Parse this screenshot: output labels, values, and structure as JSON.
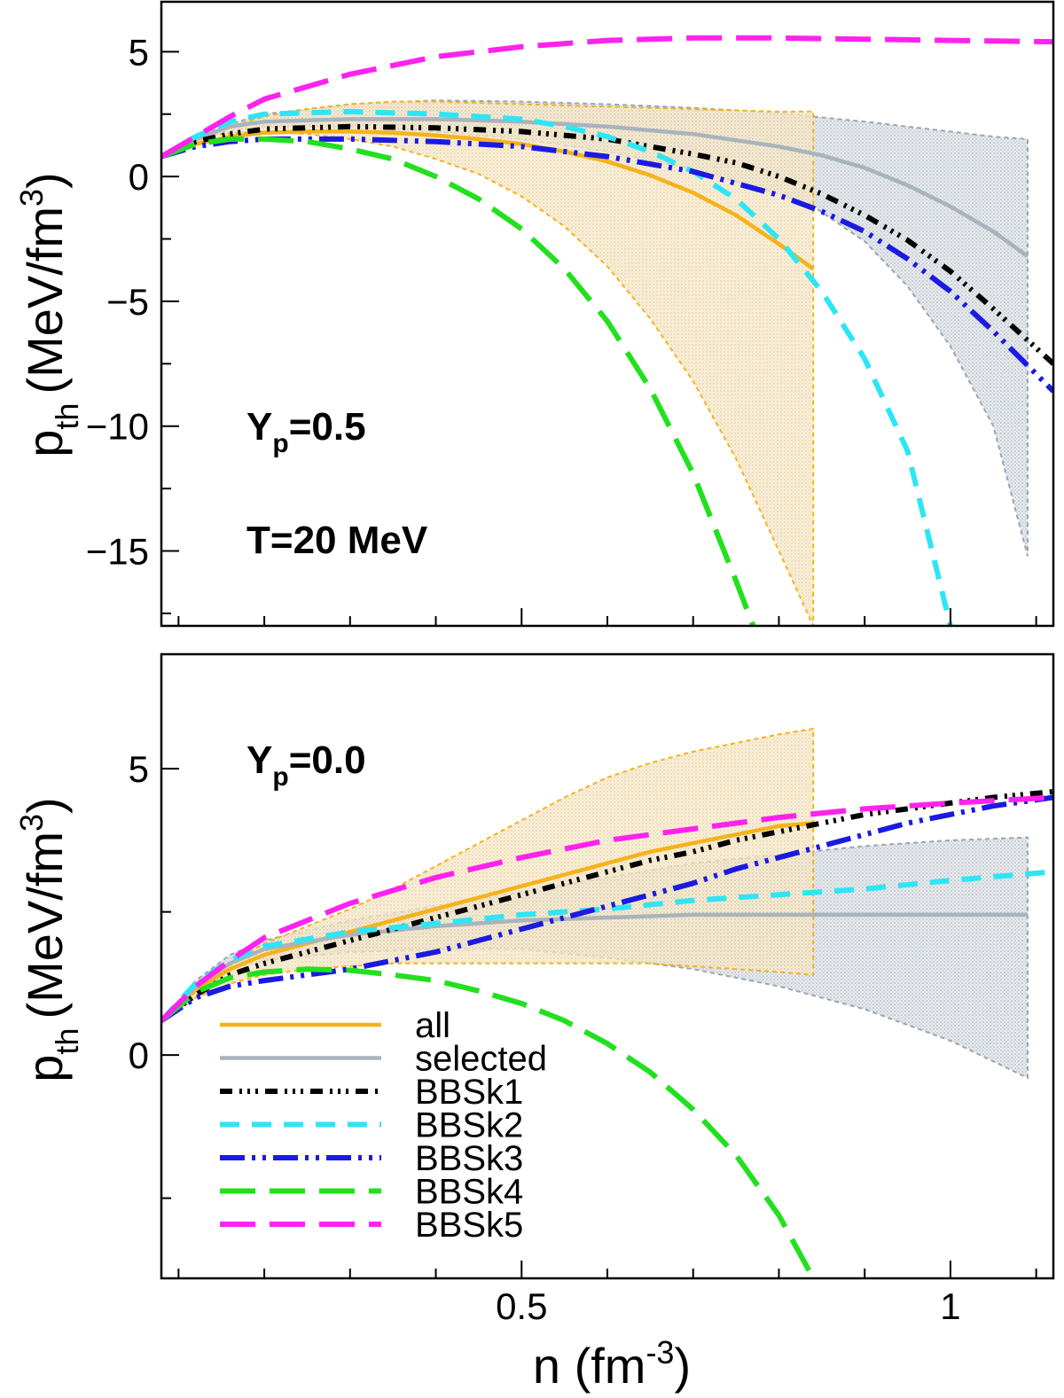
{
  "chart_data": [
    {
      "type": "line",
      "panel": "top",
      "annotations": [
        "Y",
        "p",
        "=0.5",
        "T=20 MeV"
      ],
      "ylabel": {
        "main": "p",
        "sub": "th",
        "unit": "(MeV/fm",
        "sup": "3",
        "close": ")"
      },
      "xlabel": "",
      "xlim": [
        0.08,
        1.12
      ],
      "ylim": [
        -18,
        7
      ],
      "yticks": [
        5,
        0,
        -5,
        -10,
        -15
      ],
      "ytick_labels": [
        "5",
        "0",
        "−5",
        "−10",
        "−15"
      ],
      "bands": [
        {
          "name": "all",
          "x": [
            0.08,
            0.15,
            0.2,
            0.25,
            0.3,
            0.35,
            0.4,
            0.45,
            0.5,
            0.55,
            0.6,
            0.65,
            0.7,
            0.75,
            0.8,
            0.84
          ],
          "upper": [
            0.8,
            1.9,
            2.4,
            2.7,
            2.9,
            3.0,
            3.0,
            2.95,
            2.9,
            2.85,
            2.8,
            2.75,
            2.7,
            2.65,
            2.6,
            2.6
          ],
          "lower": [
            0.8,
            1.7,
            1.8,
            1.7,
            1.5,
            1.2,
            0.7,
            0.1,
            -0.8,
            -2.0,
            -3.6,
            -5.7,
            -8.2,
            -11.3,
            -15.0,
            -18.0
          ]
        },
        {
          "name": "selected",
          "x": [
            0.08,
            0.15,
            0.2,
            0.3,
            0.4,
            0.5,
            0.6,
            0.7,
            0.8,
            0.84,
            0.9,
            0.95,
            1.0,
            1.05,
            1.09
          ],
          "upper": [
            0.8,
            2.0,
            2.5,
            2.9,
            3.05,
            3.0,
            2.9,
            2.75,
            2.55,
            2.4,
            2.2,
            2.0,
            1.8,
            1.6,
            1.5
          ],
          "lower": [
            0.8,
            1.8,
            2.0,
            2.0,
            1.8,
            1.5,
            1.0,
            0.3,
            -0.7,
            -1.2,
            -2.6,
            -4.4,
            -6.8,
            -10.0,
            -15.2
          ]
        }
      ],
      "series": [
        {
          "name": "all",
          "color": "#f5b21b",
          "dash": "solid",
          "x": [
            0.08,
            0.12,
            0.16,
            0.2,
            0.25,
            0.3,
            0.35,
            0.4,
            0.45,
            0.5,
            0.55,
            0.6,
            0.65,
            0.7,
            0.75,
            0.8,
            0.84
          ],
          "y": [
            0.8,
            1.3,
            1.6,
            1.75,
            1.8,
            1.8,
            1.75,
            1.65,
            1.5,
            1.3,
            1.0,
            0.6,
            0.05,
            -0.65,
            -1.55,
            -2.7,
            -3.7
          ]
        },
        {
          "name": "selected",
          "color": "#a8b3bd",
          "dash": "solid",
          "x": [
            0.08,
            0.12,
            0.16,
            0.2,
            0.3,
            0.4,
            0.5,
            0.6,
            0.7,
            0.8,
            0.85,
            0.9,
            0.95,
            1.0,
            1.05,
            1.09
          ],
          "y": [
            0.8,
            1.5,
            2.0,
            2.2,
            2.3,
            2.3,
            2.2,
            2.0,
            1.7,
            1.2,
            0.85,
            0.35,
            -0.35,
            -1.2,
            -2.2,
            -3.2
          ]
        },
        {
          "name": "BBSk1",
          "color": "#000000",
          "dash": "14 8 3 6 3 6 3 8",
          "x": [
            0.08,
            0.12,
            0.16,
            0.2,
            0.3,
            0.4,
            0.5,
            0.6,
            0.7,
            0.75,
            0.8,
            0.85,
            0.9,
            0.95,
            1.0,
            1.05,
            1.12
          ],
          "y": [
            0.8,
            1.4,
            1.7,
            1.9,
            2.0,
            1.95,
            1.8,
            1.5,
            0.9,
            0.55,
            0.0,
            -0.7,
            -1.55,
            -2.55,
            -3.8,
            -5.3,
            -7.5
          ]
        },
        {
          "name": "BBSk2",
          "color": "#2ee5f5",
          "dash": "22 14",
          "x": [
            0.08,
            0.12,
            0.16,
            0.2,
            0.3,
            0.4,
            0.5,
            0.55,
            0.6,
            0.65,
            0.7,
            0.75,
            0.8,
            0.85,
            0.9,
            0.95,
            1.0
          ],
          "y": [
            0.8,
            1.6,
            2.2,
            2.5,
            2.6,
            2.5,
            2.3,
            2.0,
            1.6,
            1.0,
            0.2,
            -0.9,
            -2.5,
            -4.6,
            -7.3,
            -11.0,
            -18.0
          ]
        },
        {
          "name": "BBSk3",
          "color": "#1a1ae0",
          "dash": "28 8 4 8 4 8",
          "x": [
            0.08,
            0.12,
            0.16,
            0.2,
            0.3,
            0.4,
            0.5,
            0.6,
            0.7,
            0.8,
            0.85,
            0.9,
            0.95,
            1.0,
            1.05,
            1.12
          ],
          "y": [
            0.8,
            1.2,
            1.4,
            1.5,
            1.5,
            1.4,
            1.2,
            0.8,
            0.2,
            -0.75,
            -1.4,
            -2.2,
            -3.3,
            -4.6,
            -6.2,
            -8.6
          ]
        },
        {
          "name": "BBSk4",
          "color": "#22e01e",
          "dash": "40 16",
          "x": [
            0.08,
            0.12,
            0.16,
            0.2,
            0.25,
            0.3,
            0.35,
            0.4,
            0.45,
            0.5,
            0.55,
            0.6,
            0.65,
            0.7,
            0.75,
            0.77
          ],
          "y": [
            0.8,
            1.3,
            1.5,
            1.5,
            1.4,
            1.1,
            0.7,
            0.0,
            -0.9,
            -2.1,
            -3.7,
            -5.8,
            -8.5,
            -11.9,
            -16.2,
            -18.0
          ]
        },
        {
          "name": "BBSk5",
          "color": "#ff22ee",
          "dash": "40 16",
          "x": [
            0.08,
            0.12,
            0.16,
            0.2,
            0.3,
            0.4,
            0.5,
            0.6,
            0.7,
            0.8,
            0.9,
            1.0,
            1.12
          ],
          "y": [
            0.8,
            1.6,
            2.4,
            3.1,
            4.1,
            4.8,
            5.2,
            5.45,
            5.55,
            5.55,
            5.5,
            5.45,
            5.4
          ]
        }
      ]
    },
    {
      "type": "line",
      "panel": "bottom",
      "annotations": [
        "Y",
        "p",
        "=0.0"
      ],
      "ylabel": {
        "main": "p",
        "sub": "th",
        "unit": "(MeV/fm",
        "sup": "3",
        "close": ")"
      },
      "xlabel": {
        "main": "n (fm",
        "sup": "-3",
        "close": ")"
      },
      "xlim": [
        0.08,
        1.12
      ],
      "ylim": [
        -3.9,
        7.0
      ],
      "yticks": [
        5,
        0
      ],
      "ytick_labels": [
        "5",
        "0"
      ],
      "xticks": [
        0.5,
        1.0
      ],
      "xtick_labels": [
        "0.5",
        "1"
      ],
      "bands": [
        {
          "name": "all",
          "x": [
            0.08,
            0.12,
            0.16,
            0.2,
            0.25,
            0.3,
            0.35,
            0.4,
            0.45,
            0.5,
            0.55,
            0.6,
            0.65,
            0.7,
            0.75,
            0.8,
            0.84
          ],
          "upper": [
            0.6,
            1.1,
            1.6,
            1.95,
            2.25,
            2.55,
            2.9,
            3.3,
            3.7,
            4.1,
            4.5,
            4.85,
            5.1,
            5.3,
            5.45,
            5.6,
            5.7
          ],
          "lower": [
            0.6,
            1.0,
            1.25,
            1.4,
            1.5,
            1.55,
            1.6,
            1.6,
            1.6,
            1.6,
            1.6,
            1.6,
            1.6,
            1.55,
            1.5,
            1.45,
            1.4
          ]
        },
        {
          "name": "selected",
          "x": [
            0.08,
            0.12,
            0.16,
            0.2,
            0.3,
            0.4,
            0.5,
            0.6,
            0.7,
            0.8,
            0.9,
            1.0,
            1.09
          ],
          "upper": [
            0.6,
            1.3,
            1.75,
            2.0,
            2.35,
            2.6,
            2.85,
            3.1,
            3.35,
            3.5,
            3.65,
            3.75,
            3.8
          ],
          "lower": [
            0.6,
            1.15,
            1.5,
            1.65,
            1.8,
            1.85,
            1.85,
            1.7,
            1.5,
            1.2,
            0.8,
            0.25,
            -0.4
          ]
        }
      ],
      "series": [
        {
          "name": "all",
          "color": "#f5b21b",
          "dash": "solid",
          "x": [
            0.08,
            0.12,
            0.16,
            0.2,
            0.25,
            0.3,
            0.35,
            0.4,
            0.45,
            0.5,
            0.55,
            0.6,
            0.65,
            0.7,
            0.75,
            0.8,
            0.84
          ],
          "y": [
            0.6,
            1.15,
            1.5,
            1.75,
            1.95,
            2.15,
            2.35,
            2.55,
            2.75,
            2.95,
            3.15,
            3.35,
            3.55,
            3.7,
            3.85,
            4.0,
            4.05
          ]
        },
        {
          "name": "selected",
          "color": "#a8b3bd",
          "dash": "solid",
          "x": [
            0.08,
            0.12,
            0.16,
            0.2,
            0.3,
            0.4,
            0.5,
            0.6,
            0.7,
            0.8,
            0.9,
            1.0,
            1.09
          ],
          "y": [
            0.6,
            1.2,
            1.6,
            1.85,
            2.1,
            2.25,
            2.35,
            2.4,
            2.45,
            2.45,
            2.45,
            2.45,
            2.45
          ]
        },
        {
          "name": "BBSk1",
          "color": "#000000",
          "dash": "14 8 3 6 3 6 3 8",
          "x": [
            0.08,
            0.12,
            0.16,
            0.2,
            0.25,
            0.3,
            0.35,
            0.4,
            0.45,
            0.5,
            0.55,
            0.6,
            0.65,
            0.7,
            0.75,
            0.8,
            0.85,
            0.9,
            0.95,
            1.0,
            1.05,
            1.12
          ],
          "y": [
            0.6,
            1.05,
            1.4,
            1.6,
            1.8,
            2.0,
            2.2,
            2.4,
            2.6,
            2.8,
            3.0,
            3.2,
            3.4,
            3.55,
            3.75,
            3.9,
            4.05,
            4.2,
            4.3,
            4.4,
            4.5,
            4.6
          ]
        },
        {
          "name": "BBSk2",
          "color": "#2ee5f5",
          "dash": "22 14",
          "x": [
            0.08,
            0.12,
            0.16,
            0.2,
            0.3,
            0.4,
            0.5,
            0.6,
            0.7,
            0.8,
            0.9,
            1.0,
            1.12
          ],
          "y": [
            0.6,
            1.25,
            1.65,
            1.9,
            2.15,
            2.3,
            2.45,
            2.55,
            2.7,
            2.8,
            2.9,
            3.05,
            3.2
          ]
        },
        {
          "name": "BBSk3",
          "color": "#1a1ae0",
          "dash": "28 8 4 8 4 8",
          "x": [
            0.08,
            0.12,
            0.16,
            0.2,
            0.25,
            0.3,
            0.35,
            0.4,
            0.45,
            0.5,
            0.55,
            0.6,
            0.65,
            0.7,
            0.75,
            0.8,
            0.85,
            0.9,
            0.95,
            1.0,
            1.05,
            1.12
          ],
          "y": [
            0.6,
            1.0,
            1.2,
            1.3,
            1.4,
            1.5,
            1.65,
            1.8,
            2.0,
            2.2,
            2.4,
            2.6,
            2.8,
            3.0,
            3.25,
            3.45,
            3.65,
            3.85,
            4.05,
            4.2,
            4.35,
            4.5
          ]
        },
        {
          "name": "BBSk4",
          "color": "#22e01e",
          "dash": "40 16",
          "x": [
            0.08,
            0.12,
            0.16,
            0.2,
            0.25,
            0.3,
            0.35,
            0.4,
            0.45,
            0.5,
            0.55,
            0.6,
            0.65,
            0.7,
            0.75,
            0.8,
            0.84
          ],
          "y": [
            0.6,
            1.1,
            1.35,
            1.45,
            1.5,
            1.48,
            1.4,
            1.3,
            1.12,
            0.9,
            0.6,
            0.2,
            -0.3,
            -0.95,
            -1.75,
            -2.8,
            -3.9
          ]
        },
        {
          "name": "BBSk5",
          "color": "#ff22ee",
          "dash": "40 16",
          "x": [
            0.08,
            0.12,
            0.16,
            0.2,
            0.3,
            0.4,
            0.5,
            0.6,
            0.7,
            0.8,
            0.9,
            1.0,
            1.12
          ],
          "y": [
            0.6,
            1.2,
            1.65,
            2.05,
            2.65,
            3.1,
            3.45,
            3.75,
            3.95,
            4.15,
            4.3,
            4.4,
            4.5
          ]
        }
      ],
      "legend": {
        "position": "lower-left",
        "entries": [
          {
            "label": "all",
            "color": "#f5b21b",
            "dash": "solid"
          },
          {
            "label": "selected",
            "color": "#a8b3bd",
            "dash": "solid"
          },
          {
            "label": "BBSk1",
            "color": "#000000",
            "dash": "14 8 3 6 3 6 3 8"
          },
          {
            "label": "BBSk2",
            "color": "#2ee5f5",
            "dash": "22 14"
          },
          {
            "label": "BBSk3",
            "color": "#1a1ae0",
            "dash": "28 8 4 8 4 8"
          },
          {
            "label": "BBSk4",
            "color": "#22e01e",
            "dash": "40 16"
          },
          {
            "label": "BBSk5",
            "color": "#ff22ee",
            "dash": "40 16"
          }
        ]
      }
    }
  ]
}
